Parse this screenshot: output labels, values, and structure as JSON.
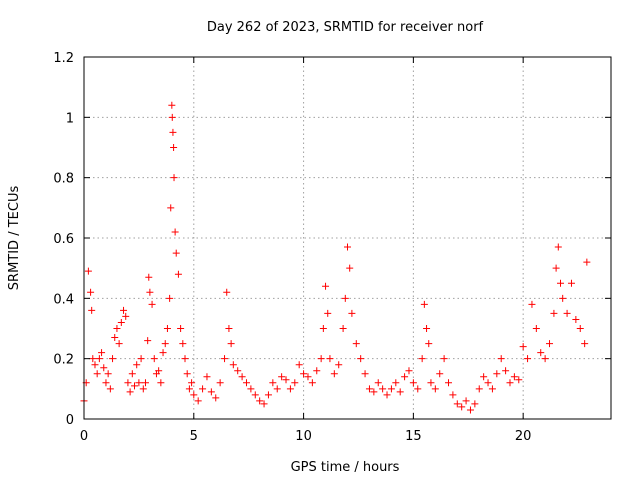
{
  "chart_data": {
    "type": "scatter",
    "title": "Day 262 of 2023, SRMTID for receiver norf",
    "xlabel": "GPS time / hours",
    "ylabel": "SRMTID / TECUs",
    "xlim": [
      0,
      24
    ],
    "ylim": [
      0,
      1.2
    ],
    "x_ticks": [
      0,
      5,
      10,
      15,
      20
    ],
    "x_tick_labels": [
      "0",
      "5",
      "10",
      "15",
      "20"
    ],
    "y_ticks": [
      0,
      0.2,
      0.4,
      0.6,
      0.8,
      1.0,
      1.2
    ],
    "y_tick_labels": [
      "0",
      "0.2",
      "0.4",
      "0.6",
      "0.8",
      "1",
      "1.2"
    ],
    "grid": true,
    "marker": "+",
    "series": [
      {
        "name": "norf",
        "color": "#ff0000",
        "x": [
          0.0,
          0.1,
          0.2,
          0.3,
          0.35,
          0.4,
          0.5,
          0.6,
          0.7,
          0.8,
          0.9,
          1.0,
          1.1,
          1.2,
          1.3,
          1.4,
          1.5,
          1.6,
          1.7,
          1.8,
          1.9,
          2.0,
          2.1,
          2.2,
          2.3,
          2.4,
          2.5,
          2.6,
          2.7,
          2.8,
          2.9,
          2.95,
          3.0,
          3.1,
          3.2,
          3.3,
          3.4,
          3.5,
          3.6,
          3.7,
          3.8,
          3.9,
          3.95,
          4.0,
          4.02,
          4.05,
          4.08,
          4.1,
          4.15,
          4.2,
          4.3,
          4.4,
          4.5,
          4.6,
          4.7,
          4.8,
          4.9,
          5.0,
          5.2,
          5.4,
          5.6,
          5.8,
          6.0,
          6.2,
          6.4,
          6.5,
          6.6,
          6.7,
          6.8,
          7.0,
          7.2,
          7.4,
          7.6,
          7.8,
          8.0,
          8.2,
          8.4,
          8.6,
          8.8,
          9.0,
          9.2,
          9.4,
          9.6,
          9.8,
          10.0,
          10.2,
          10.4,
          10.6,
          10.8,
          10.9,
          11.0,
          11.1,
          11.2,
          11.4,
          11.6,
          11.8,
          11.9,
          12.0,
          12.1,
          12.2,
          12.4,
          12.6,
          12.8,
          13.0,
          13.2,
          13.4,
          13.6,
          13.8,
          14.0,
          14.2,
          14.4,
          14.6,
          14.8,
          15.0,
          15.2,
          15.4,
          15.5,
          15.6,
          15.7,
          15.8,
          16.0,
          16.2,
          16.4,
          16.6,
          16.8,
          17.0,
          17.2,
          17.4,
          17.6,
          17.8,
          18.0,
          18.2,
          18.4,
          18.6,
          18.8,
          19.0,
          19.2,
          19.4,
          19.6,
          19.8,
          20.0,
          20.2,
          20.4,
          20.6,
          20.8,
          21.0,
          21.2,
          21.4,
          21.5,
          21.6,
          21.7,
          21.8,
          22.0,
          22.2,
          22.4,
          22.6,
          22.8,
          22.9
        ],
        "y": [
          0.06,
          0.12,
          0.49,
          0.42,
          0.36,
          0.2,
          0.18,
          0.15,
          0.2,
          0.22,
          0.17,
          0.12,
          0.15,
          0.1,
          0.2,
          0.27,
          0.3,
          0.25,
          0.32,
          0.36,
          0.34,
          0.12,
          0.09,
          0.15,
          0.11,
          0.18,
          0.12,
          0.2,
          0.1,
          0.12,
          0.26,
          0.47,
          0.42,
          0.38,
          0.2,
          0.15,
          0.16,
          0.12,
          0.22,
          0.25,
          0.3,
          0.4,
          0.7,
          1.04,
          1.0,
          0.95,
          0.9,
          0.8,
          0.62,
          0.55,
          0.48,
          0.3,
          0.25,
          0.2,
          0.15,
          0.1,
          0.12,
          0.08,
          0.06,
          0.1,
          0.14,
          0.09,
          0.07,
          0.12,
          0.2,
          0.42,
          0.3,
          0.25,
          0.18,
          0.16,
          0.14,
          0.12,
          0.1,
          0.08,
          0.06,
          0.05,
          0.08,
          0.12,
          0.1,
          0.14,
          0.13,
          0.1,
          0.12,
          0.18,
          0.15,
          0.14,
          0.12,
          0.16,
          0.2,
          0.3,
          0.44,
          0.35,
          0.2,
          0.15,
          0.18,
          0.3,
          0.4,
          0.57,
          0.5,
          0.35,
          0.25,
          0.2,
          0.15,
          0.1,
          0.09,
          0.12,
          0.1,
          0.08,
          0.1,
          0.12,
          0.09,
          0.14,
          0.16,
          0.12,
          0.1,
          0.2,
          0.38,
          0.3,
          0.25,
          0.12,
          0.1,
          0.15,
          0.2,
          0.12,
          0.08,
          0.05,
          0.04,
          0.06,
          0.03,
          0.05,
          0.1,
          0.14,
          0.12,
          0.1,
          0.15,
          0.2,
          0.16,
          0.12,
          0.14,
          0.13,
          0.24,
          0.2,
          0.38,
          0.3,
          0.22,
          0.2,
          0.25,
          0.35,
          0.5,
          0.57,
          0.45,
          0.4,
          0.35,
          0.45,
          0.33,
          0.3,
          0.25,
          0.52
        ]
      }
    ]
  }
}
